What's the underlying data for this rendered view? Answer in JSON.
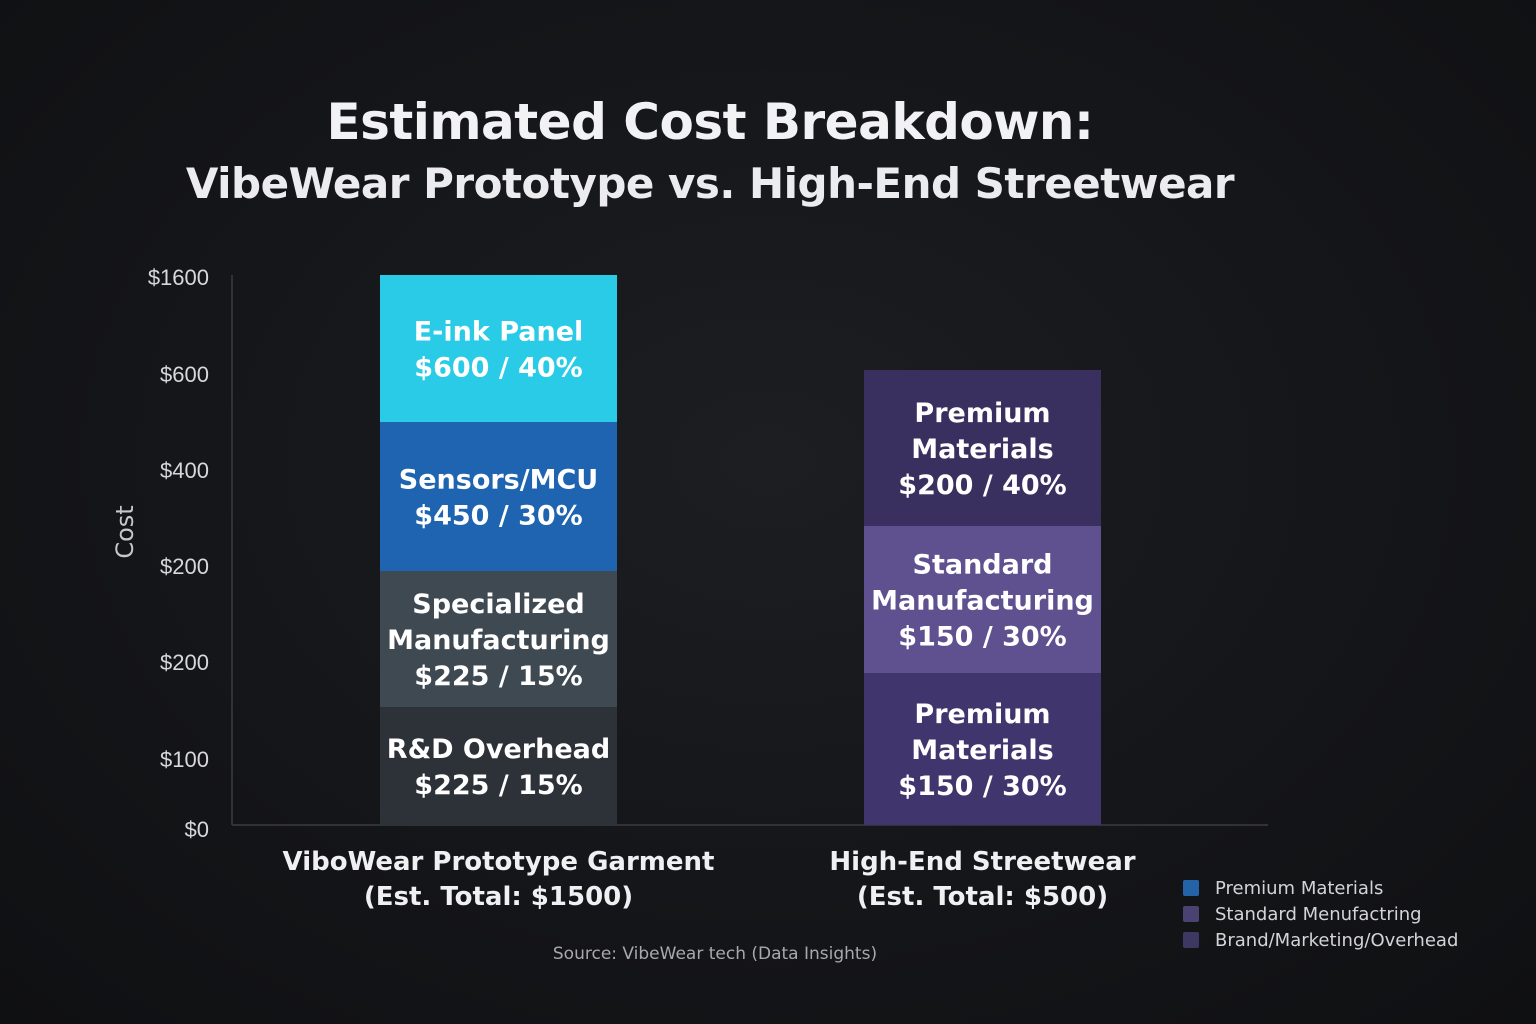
{
  "chart_data": {
    "type": "bar",
    "stacked": true,
    "title": "Estimated Cost Breakdown:",
    "subtitle": "VibeWear Prototype vs. High-End Streetwear",
    "ylabel": "Cost",
    "yticks": [
      "$1600",
      "$600",
      "$400",
      "$200",
      "$200",
      "$100",
      "$0"
    ],
    "bars": [
      {
        "category_line1": "ViboWear Prototype Garment",
        "category_line2": "(Est. Total: $1500)",
        "total": 1500,
        "segments": [
          {
            "name_lines": [
              "R&D Overhead"
            ],
            "value_label": "$225 / 15%",
            "value": 225,
            "color": "#2d3238"
          },
          {
            "name_lines": [
              "Specialized",
              "Manufacturing"
            ],
            "value_label": "$225 / 15%",
            "value": 225,
            "color": "#3f4952"
          },
          {
            "name_lines": [
              "Sensors/MCU"
            ],
            "value_label": "$450 / 30%",
            "value": 450,
            "color": "#1f64b0"
          },
          {
            "name_lines": [
              "E-ink Panel"
            ],
            "value_label": "$600 / 40%",
            "value": 600,
            "color": "#2acbe6"
          }
        ]
      },
      {
        "category_line1": "High-End Streetwear",
        "category_line2": "(Est. Total: $500)",
        "total": 500,
        "segments": [
          {
            "name_lines": [
              "Premium",
              "Materials"
            ],
            "value_label": "$150 / 30%",
            "value": 150,
            "color": "#40356d"
          },
          {
            "name_lines": [
              "Standard",
              "Manufacturing"
            ],
            "value_label": "$150 / 30%",
            "value": 150,
            "color": "#5f5190"
          },
          {
            "name_lines": [
              "Premium",
              "Materials"
            ],
            "value_label": "$200 / 40%",
            "value": 200,
            "color": "#3a305f"
          }
        ]
      }
    ],
    "legend": [
      {
        "label": "Premium Materials",
        "color": "#2563a8"
      },
      {
        "label": "Standard Menufactring",
        "color": "#4a4270"
      },
      {
        "label": "Brand/Marketing/Overhead",
        "color": "#3d3862"
      }
    ],
    "legend_position": "bottom-right",
    "grid": false
  },
  "source": "Source: VibeWear tech (Data Insights)"
}
